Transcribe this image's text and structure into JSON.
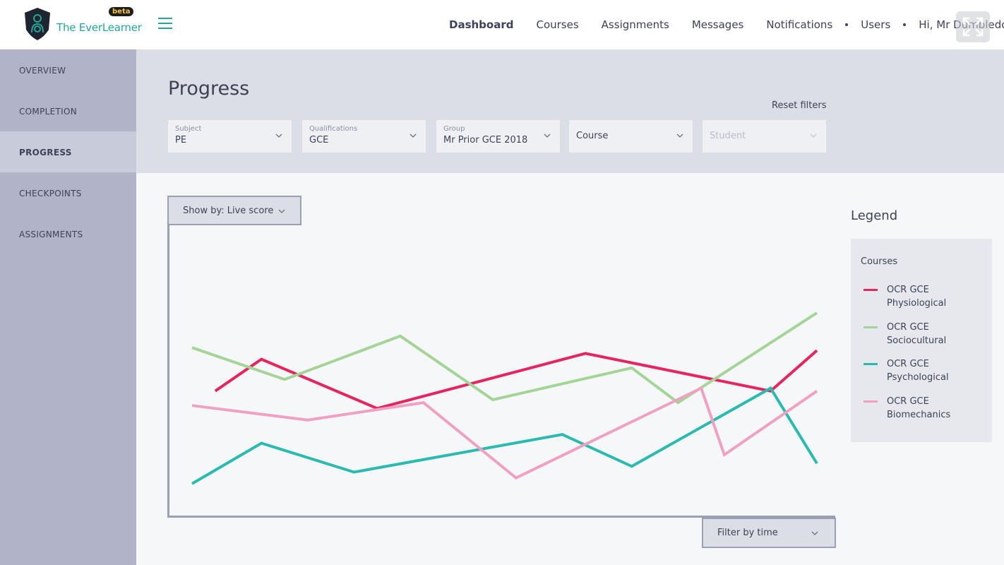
{
  "header": {
    "brand_name": "The EverLearner",
    "beta_label": "beta",
    "nav": [
      "Dashboard",
      "Courses",
      "Assignments",
      "Messages",
      "Notifications",
      "Users",
      "Hi, Mr Dumbledore"
    ],
    "icons": [
      "shield-logo-icon",
      "menu-icon",
      "expand-icon"
    ]
  },
  "sidebar": {
    "items": [
      {
        "label": "OVERVIEW"
      },
      {
        "label": "COMPLETION"
      },
      {
        "label": "PROGRESS"
      },
      {
        "label": "CHECKPOINTS"
      },
      {
        "label": "ASSIGNMENTS"
      }
    ]
  },
  "page": {
    "title": "Progress",
    "reset_label": "Reset filters"
  },
  "filters": {
    "subject": {
      "label": "Subject",
      "value": "PE"
    },
    "qualifications": {
      "label": "Qualifications",
      "value": "GCE"
    },
    "group": {
      "label": "Group",
      "value": "Mr Prior GCE 2018"
    },
    "course": {
      "value": "Course"
    },
    "student": {
      "value": "Student"
    }
  },
  "chart_controls": {
    "show_by": "Show by: Live score",
    "filter_time": "Filter by time"
  },
  "legend": {
    "title": "Legend",
    "heading": "Courses",
    "items": [
      {
        "line1": "OCR GCE",
        "line2": "Physiological",
        "color": "#e6245e"
      },
      {
        "line1": "OCR GCE",
        "line2": "Sociocultural",
        "color": "#a5d497"
      },
      {
        "line1": "OCR GCE",
        "line2": "Psychological",
        "color": "#2cbab0"
      },
      {
        "line1": "OCR GCE",
        "line2": "Biomechanics",
        "color": "#f0a0c0"
      }
    ]
  },
  "chart_data": {
    "type": "line",
    "title": "",
    "xlabel": "",
    "ylabel": "",
    "ylim": [
      0,
      100
    ],
    "grid": false,
    "series": [
      {
        "name": "OCR GCE Physiological",
        "color": "#e6245e",
        "x": [
          0.5,
          1.5,
          4,
          8.5,
          12.5,
          13.5
        ],
        "values": [
          43,
          54,
          37,
          56,
          43,
          57
        ]
      },
      {
        "name": "OCR GCE Sociocultural",
        "color": "#a5d497",
        "x": [
          0,
          2,
          4.5,
          6.5,
          9.5,
          10.5,
          13.5
        ],
        "values": [
          58,
          47,
          62,
          40,
          51,
          39,
          70
        ]
      },
      {
        "name": "OCR GCE Psychological",
        "color": "#2cbab0",
        "x": [
          0,
          1.5,
          3.5,
          8,
          9.5,
          12.5,
          13.5
        ],
        "values": [
          11,
          25,
          15,
          28,
          17,
          44,
          18
        ]
      },
      {
        "name": "OCR GCE Biomechanics",
        "color": "#f0a0c0",
        "x": [
          0,
          2.5,
          5,
          7,
          11,
          11.5,
          13.5
        ],
        "values": [
          38,
          33,
          39,
          13,
          44,
          21,
          43
        ]
      }
    ]
  }
}
